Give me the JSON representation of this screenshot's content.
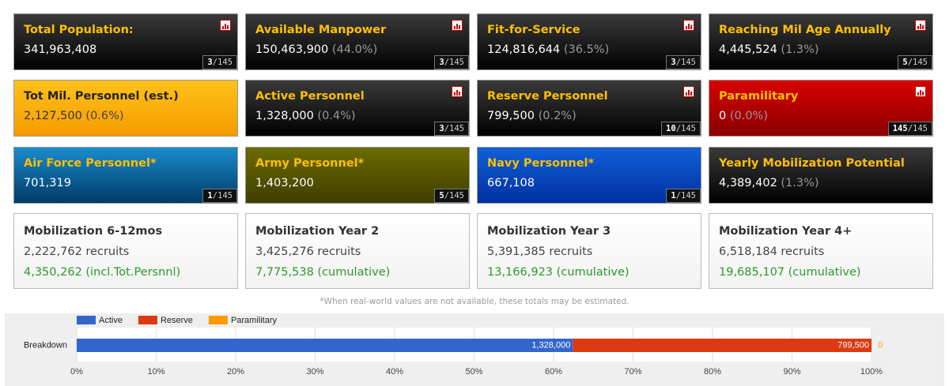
{
  "cards": [
    {
      "title": "Total Population:",
      "value": "341,963,408",
      "rank": "3",
      "rank_total": "/145"
    },
    {
      "title": "Available Manpower",
      "value": "150,463,900",
      "pct": "(44.0%)",
      "rank": "3",
      "rank_total": "/145"
    },
    {
      "title": "Fit-for-Service",
      "value": "124,816,644",
      "pct": "(36.5%)",
      "rank": "3",
      "rank_total": "/145"
    },
    {
      "title": "Reaching Mil Age Annually",
      "value": "4,445,524",
      "pct": "(1.3%)",
      "rank": "5",
      "rank_total": "/145"
    },
    {
      "title": "Tot Mil. Personnel (est.)",
      "value": "2,127,500",
      "pct": "(0.6%)"
    },
    {
      "title": "Active Personnel",
      "value": "1,328,000",
      "pct": "(0.4%)",
      "rank": "3",
      "rank_total": "/145"
    },
    {
      "title": "Reserve Personnel",
      "value": "799,500",
      "pct": "(0.2%)",
      "rank": "10",
      "rank_total": "/145"
    },
    {
      "title": "Paramilitary",
      "value": "0",
      "pct": "(0.0%)",
      "rank": "145",
      "rank_total": "/145"
    },
    {
      "title": "Air Force Personnel*",
      "value": "701,319",
      "rank": "1",
      "rank_total": "/145"
    },
    {
      "title": "Army Personnel*",
      "value": "1,403,200",
      "rank": "5",
      "rank_total": "/145"
    },
    {
      "title": "Navy Personnel*",
      "value": "667,108",
      "rank": "1",
      "rank_total": "/145"
    },
    {
      "title": "Yearly Mobilization Potential",
      "value": "4,389,402",
      "pct": "(1.3%)"
    }
  ],
  "mobilization": [
    {
      "title": "Mobilization 6-12mos",
      "recruits": "2,222,762 recruits",
      "cumulative": "4,350,262 (incl.Tot.Persnnl)"
    },
    {
      "title": "Mobilization Year 2",
      "recruits": "3,425,276 recruits",
      "cumulative": "7,775,538 (cumulative)"
    },
    {
      "title": "Mobilization Year 3",
      "recruits": "5,391,385 recruits",
      "cumulative": "13,166,923 (cumulative)"
    },
    {
      "title": "Mobilization Year 4+",
      "recruits": "6,518,184 recruits",
      "cumulative": "19,685,107 (cumulative)"
    }
  ],
  "footnote": "*When real-world values are not available, these totals may be estimated.",
  "chart_data": {
    "type": "bar",
    "orientation": "horizontal",
    "stacking": "percent",
    "categories": [
      "Breakdown"
    ],
    "series": [
      {
        "name": "Active",
        "color": "#3366cc",
        "values": [
          1328000
        ],
        "value_labels": [
          "1,328,000"
        ]
      },
      {
        "name": "Reserve",
        "color": "#dc3912",
        "values": [
          799500
        ],
        "value_labels": [
          "799,500"
        ]
      },
      {
        "name": "Paramilitary",
        "color": "#ff9900",
        "values": [
          0
        ]
      }
    ],
    "xlim": [
      0,
      100
    ],
    "xticks": [
      {
        "value": 0,
        "label": "0%"
      },
      {
        "value": 10,
        "label": "10%"
      },
      {
        "value": 20,
        "label": "20%"
      },
      {
        "value": 30,
        "label": "30%"
      },
      {
        "value": 40,
        "label": "40%"
      },
      {
        "value": 50,
        "label": "50%"
      },
      {
        "value": 60,
        "label": "60%"
      },
      {
        "value": 70,
        "label": "70%"
      },
      {
        "value": 80,
        "label": "80%"
      },
      {
        "value": 90,
        "label": "90%"
      },
      {
        "value": 100,
        "label": "100%"
      }
    ],
    "grid": true,
    "legend": "top"
  }
}
